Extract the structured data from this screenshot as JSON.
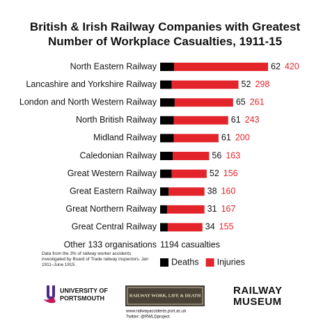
{
  "chart_data": {
    "type": "bar",
    "orientation": "horizontal",
    "stacked": true,
    "title": "British & Irish Railway Companies with Greatest Number of Workplace Casualties, 1911-15",
    "categories": [
      "North Eastern Railway",
      "Lancashire and Yorkshire Railway",
      "London and North Western Railway",
      "North British Railway",
      "Midland Railway",
      "Caledonian Railway",
      "Great Western Railway",
      "Great Eastern Railway",
      "Great Northern Railway",
      "Great Central Railway"
    ],
    "series": [
      {
        "name": "Deaths",
        "color": "#000000",
        "values": [
          62,
          52,
          65,
          61,
          61,
          56,
          52,
          38,
          31,
          34
        ]
      },
      {
        "name": "Injuries",
        "color": "#e3242b",
        "values": [
          420,
          298,
          261,
          243,
          200,
          163,
          156,
          160,
          167,
          155
        ]
      }
    ],
    "summary": {
      "label": "Other 133 organisations",
      "text": "1194 casualties"
    },
    "note": "Data from the 3% of railway worker accidents investigated by Board of Trade railway inspectors, Jan 1911–June 1915.",
    "legend": "bottom"
  },
  "footer": {
    "university": [
      "UNIVERSITY OF",
      "PORTSMOUTH"
    ],
    "project": "RAILWAY WORK, LIFE & DEATH",
    "website": "www.railwayaccidents.port.ac.uk",
    "twitter": "Twitter: @RWLDproject",
    "museum": [
      "RAILWAY",
      "MUSEUM"
    ]
  }
}
